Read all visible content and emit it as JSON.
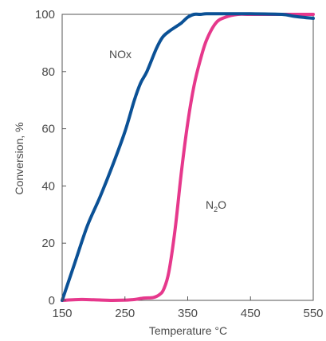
{
  "chart_data": {
    "type": "line",
    "title": "",
    "xlabel": "Temperature °C",
    "ylabel": "Conversion, %",
    "xlim": [
      150,
      550
    ],
    "ylim": [
      0,
      100
    ],
    "x_ticks": [
      150,
      250,
      350,
      450,
      550
    ],
    "y_ticks": [
      0,
      20,
      40,
      60,
      80,
      100
    ],
    "grid": false,
    "legend": "none",
    "series": [
      {
        "name": "NOx",
        "color": "#0b5196",
        "x": [
          150,
          170,
          190,
          210,
          230,
          250,
          265,
          275,
          285,
          300,
          310,
          320,
          330,
          340,
          350,
          360,
          370,
          380,
          400,
          450,
          500,
          520,
          550
        ],
        "y": [
          0,
          13,
          26,
          36,
          47,
          59,
          70,
          76,
          80,
          88,
          92,
          94,
          95.5,
          97,
          99,
          100,
          100,
          100.2,
          100.2,
          100.2,
          100,
          99.3,
          98.6
        ]
      },
      {
        "name_parts": [
          "N",
          "2",
          "O"
        ],
        "color": "#e6388c",
        "x": [
          150,
          180,
          200,
          230,
          260,
          280,
          295,
          305,
          312,
          320,
          330,
          340,
          350,
          360,
          370,
          380,
          395,
          410,
          430,
          450,
          500,
          550
        ],
        "y": [
          0,
          0.3,
          0.2,
          0,
          0.2,
          0.8,
          1,
          2,
          4,
          10,
          25,
          45,
          62,
          75,
          84,
          91,
          97,
          99,
          100,
          100,
          100,
          100
        ]
      }
    ]
  }
}
